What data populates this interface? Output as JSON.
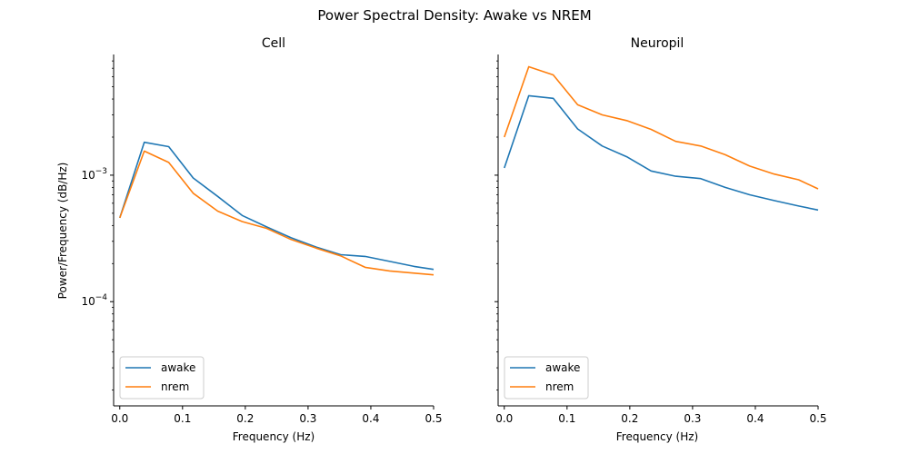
{
  "chart_data": {
    "type": "line",
    "suptitle": "Power Spectral Density: Awake vs NREM",
    "ylabel": "Power/Frequency (dB/Hz)",
    "xlabel": "Frequency (Hz)",
    "yscale": "log",
    "ylim": [
      1.5e-05,
      0.009
    ],
    "xlim": [
      -0.004,
      0.5
    ],
    "sharey": true,
    "xticks": [
      {
        "value": 0.0,
        "label": "0.0"
      },
      {
        "value": 0.1,
        "label": "0.1"
      },
      {
        "value": 0.2,
        "label": "0.2"
      },
      {
        "value": 0.3,
        "label": "0.3"
      },
      {
        "value": 0.4,
        "label": "0.4"
      },
      {
        "value": 0.5,
        "label": "0.5"
      }
    ],
    "yticks": [
      {
        "value": 0.001,
        "base": "10",
        "exp": "−3"
      },
      {
        "value": 0.0001,
        "base": "10",
        "exp": "−4"
      }
    ],
    "legend_placement": "lower left",
    "grid": false,
    "x": [
      0.0,
      0.039,
      0.078,
      0.117,
      0.156,
      0.195,
      0.234,
      0.273,
      0.313,
      0.352,
      0.391,
      0.43,
      0.469,
      0.5
    ],
    "panels": [
      {
        "title": "Cell",
        "series": [
          {
            "name": "awake",
            "color": "#1f77b4",
            "values": [
              0.00046,
              0.00182,
              0.00168,
              0.00095,
              0.00068,
              0.00048,
              0.00039,
              0.00032,
              0.00027,
              0.000235,
              0.000228,
              0.000208,
              0.00019,
              0.00018
            ]
          },
          {
            "name": "nrem",
            "color": "#ff7f0e",
            "values": [
              0.00046,
              0.00155,
              0.00126,
              0.00072,
              0.00052,
              0.00043,
              0.00038,
              0.00031,
              0.000265,
              0.00023,
              0.000187,
              0.000175,
              0.000168,
              0.000163
            ]
          }
        ]
      },
      {
        "title": "Neuropil",
        "series": [
          {
            "name": "awake",
            "color": "#1f77b4",
            "values": [
              0.00114,
              0.00425,
              0.00405,
              0.00232,
              0.0017,
              0.0014,
              0.00108,
              0.00098,
              0.00094,
              0.0008,
              0.0007,
              0.00063,
              0.00057,
              0.00053
            ]
          },
          {
            "name": "nrem",
            "color": "#ff7f0e",
            "values": [
              0.002,
              0.0072,
              0.0062,
              0.0036,
              0.003,
              0.0027,
              0.0023,
              0.00185,
              0.0017,
              0.00145,
              0.00118,
              0.00102,
              0.00092,
              0.00078
            ]
          }
        ]
      }
    ]
  }
}
